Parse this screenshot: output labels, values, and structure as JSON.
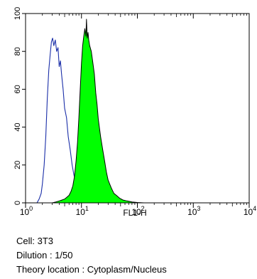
{
  "chart_data": {
    "type": "area",
    "xlabel": "FL1-H",
    "ylabel": "",
    "x_scale": "log",
    "xlim": [
      1,
      10000
    ],
    "ylim": [
      0,
      100
    ],
    "x_ticks": [
      {
        "value": 1,
        "base": "10",
        "exp": "0"
      },
      {
        "value": 10,
        "base": "10",
        "exp": "1"
      },
      {
        "value": 100,
        "base": "10",
        "exp": "2"
      },
      {
        "value": 1000,
        "base": "10",
        "exp": "3"
      },
      {
        "value": 10000,
        "base": "10",
        "exp": "4"
      }
    ],
    "y_ticks": [
      "0",
      "20",
      "40",
      "60",
      "80",
      "100"
    ],
    "grid": false,
    "series": [
      {
        "style": "outline",
        "color": "#1a2ea8",
        "points": [
          [
            1.6,
            0
          ],
          [
            1.75,
            2
          ],
          [
            1.9,
            5
          ],
          [
            2.0,
            10
          ],
          [
            2.15,
            20
          ],
          [
            2.3,
            35
          ],
          [
            2.45,
            55
          ],
          [
            2.6,
            70
          ],
          [
            2.75,
            78
          ],
          [
            2.9,
            85
          ],
          [
            3.05,
            87
          ],
          [
            3.2,
            83
          ],
          [
            3.4,
            86
          ],
          [
            3.6,
            80
          ],
          [
            3.8,
            82
          ],
          [
            4.0,
            72
          ],
          [
            4.2,
            75
          ],
          [
            4.4,
            68
          ],
          [
            4.7,
            60
          ],
          [
            5.0,
            50
          ],
          [
            5.4,
            45
          ],
          [
            5.8,
            35
          ],
          [
            6.3,
            28
          ],
          [
            6.8,
            20
          ],
          [
            7.3,
            15
          ],
          [
            8.0,
            10
          ],
          [
            9.0,
            7
          ],
          [
            10.5,
            3
          ],
          [
            12.0,
            2
          ],
          [
            15.0,
            0.5
          ],
          [
            20.0,
            0
          ]
        ]
      },
      {
        "style": "filled",
        "color": "#00ff00",
        "points": [
          [
            3.0,
            0
          ],
          [
            3.5,
            0.5
          ],
          [
            4.0,
            1
          ],
          [
            4.5,
            1.5
          ],
          [
            5.0,
            2
          ],
          [
            5.5,
            3
          ],
          [
            6.0,
            4
          ],
          [
            6.5,
            6
          ],
          [
            7.0,
            9
          ],
          [
            7.5,
            14
          ],
          [
            8.0,
            22
          ],
          [
            8.5,
            32
          ],
          [
            9.0,
            45
          ],
          [
            9.5,
            60
          ],
          [
            10.0,
            74
          ],
          [
            10.5,
            83
          ],
          [
            11.0,
            88
          ],
          [
            11.5,
            92
          ],
          [
            12.0,
            88
          ],
          [
            12.3,
            97
          ],
          [
            12.7,
            87
          ],
          [
            13.1,
            90
          ],
          [
            13.5,
            86
          ],
          [
            14.0,
            83
          ],
          [
            15.0,
            80
          ],
          [
            16.0,
            74
          ],
          [
            17.0,
            68
          ],
          [
            18.0,
            58
          ],
          [
            19.0,
            52
          ],
          [
            20.0,
            44
          ],
          [
            22.0,
            35
          ],
          [
            24.0,
            28
          ],
          [
            26.0,
            22
          ],
          [
            28.0,
            16
          ],
          [
            30.0,
            12
          ],
          [
            34.0,
            8
          ],
          [
            38.0,
            5
          ],
          [
            42.0,
            4
          ],
          [
            48.0,
            2.5
          ],
          [
            55.0,
            1.5
          ],
          [
            65.0,
            1
          ],
          [
            80.0,
            0.5
          ],
          [
            100.0,
            0.2
          ],
          [
            130.0,
            0
          ]
        ]
      }
    ]
  },
  "caption": {
    "cell": "Cell: 3T3",
    "dilution": "Dilution : 1/50",
    "theory_location": "Theory location : Cytoplasm/Nucleus"
  }
}
